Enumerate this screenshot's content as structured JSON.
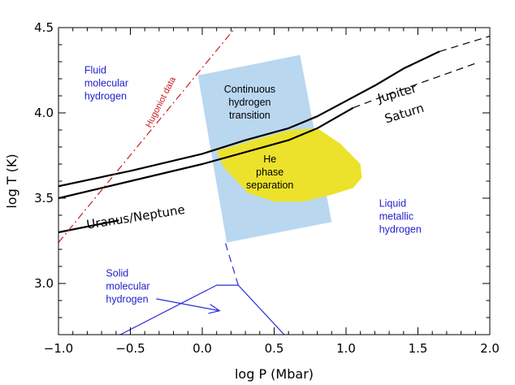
{
  "chart_data": {
    "type": "line",
    "title": "",
    "xlabel": "log P (Mbar)",
    "ylabel": "log T (K)",
    "xlim": [
      -1.0,
      2.0
    ],
    "ylim": [
      2.7,
      4.5
    ],
    "xticks": [
      "−1.0",
      "−0.5",
      "0.0",
      "0.5",
      "1.0",
      "1.5",
      "2.0"
    ],
    "xtick_values": [
      -1.0,
      -0.5,
      0.0,
      0.5,
      1.0,
      1.5,
      2.0
    ],
    "yticks": [
      "3.0",
      "3.5",
      "4.0",
      "4.5"
    ],
    "ytick_values": [
      3.0,
      3.5,
      4.0,
      4.5
    ],
    "series": [
      {
        "name": "Jupiter",
        "style": "solid",
        "color": "#000000",
        "x": [
          -1.0,
          -0.5,
          0.0,
          0.3,
          0.6,
          0.8,
          1.0,
          1.2,
          1.4,
          1.65
        ],
        "y": [
          3.57,
          3.66,
          3.76,
          3.84,
          3.91,
          3.98,
          4.07,
          4.16,
          4.26,
          4.36
        ]
      },
      {
        "name": "Jupiter (extrapolated)",
        "style": "dashed",
        "color": "#000000",
        "x": [
          1.65,
          2.0
        ],
        "y": [
          4.36,
          4.45
        ]
      },
      {
        "name": "Saturn",
        "style": "solid",
        "color": "#000000",
        "x": [
          -1.0,
          -0.5,
          0.0,
          0.3,
          0.6,
          0.8,
          1.05
        ],
        "y": [
          3.5,
          3.6,
          3.7,
          3.77,
          3.84,
          3.91,
          4.03
        ]
      },
      {
        "name": "Saturn (extrapolated)",
        "style": "dashed",
        "color": "#000000",
        "x": [
          1.05,
          1.3,
          1.6,
          1.9
        ],
        "y": [
          4.03,
          4.11,
          4.2,
          4.29
        ]
      },
      {
        "name": "Uranus/Neptune",
        "style": "solid",
        "color": "#000000",
        "x": [
          -1.0,
          -0.58
        ],
        "y": [
          3.3,
          3.37
        ]
      },
      {
        "name": "Hugoniot data",
        "style": "dashdot",
        "color": "#c81e1e",
        "x": [
          -1.0,
          0.23
        ],
        "y": [
          3.24,
          4.5
        ]
      },
      {
        "name": "Solid phase boundary",
        "style": "solid",
        "color": "#2a2ad8",
        "x": [
          -0.57,
          0.1,
          0.25,
          0.57
        ],
        "y": [
          2.7,
          2.99,
          2.99,
          2.7
        ]
      },
      {
        "name": "Melting line (dashed)",
        "style": "dashed",
        "color": "#2a2ad8",
        "x": [
          0.25,
          0.16
        ],
        "y": [
          2.99,
          3.24
        ]
      }
    ],
    "regions": [
      {
        "name": "Continuous hydrogen transition",
        "color": "#bad7f0",
        "polygon": [
          [
            -0.03,
            4.22
          ],
          [
            0.68,
            4.34
          ],
          [
            0.9,
            3.36
          ],
          [
            0.17,
            3.24
          ]
        ]
      },
      {
        "name": "He phase separation",
        "color": "#ece22b",
        "polygon": [
          [
            0.1,
            3.78
          ],
          [
            0.2,
            3.8
          ],
          [
            0.35,
            3.84
          ],
          [
            0.62,
            3.9
          ],
          [
            0.8,
            3.91
          ],
          [
            0.96,
            3.82
          ],
          [
            1.1,
            3.7
          ],
          [
            1.11,
            3.62
          ],
          [
            1.05,
            3.56
          ],
          [
            0.9,
            3.52
          ],
          [
            0.7,
            3.48
          ],
          [
            0.5,
            3.48
          ],
          [
            0.32,
            3.53
          ],
          [
            0.24,
            3.6
          ],
          [
            0.15,
            3.68
          ]
        ]
      }
    ],
    "annotations": [
      {
        "id": "fluid",
        "lines": [
          "Fluid",
          "molecular",
          "hydrogen"
        ],
        "x": -0.82,
        "y": 4.23,
        "color": "#2222cc"
      },
      {
        "id": "continuous",
        "lines": [
          "Continuous",
          "hydrogen",
          "transition"
        ],
        "x": 0.33,
        "y": 4.12,
        "color": "#000000"
      },
      {
        "id": "he",
        "lines": [
          "He",
          "phase",
          "separation"
        ],
        "x": 0.47,
        "y": 3.71,
        "color": "#000000"
      },
      {
        "id": "liquid",
        "lines": [
          "Liquid",
          "metallic",
          "hydrogen"
        ],
        "x": 1.23,
        "y": 3.45,
        "color": "#2222cc"
      },
      {
        "id": "solid",
        "lines": [
          "Solid",
          "molecular",
          "hydrogen"
        ],
        "x": -0.67,
        "y": 3.04,
        "color": "#2222cc"
      },
      {
        "id": "hugoniot",
        "lines": [
          "Hugoniot data"
        ],
        "x": -0.36,
        "y": 3.91,
        "color": "#c81e1e",
        "angle": -63
      },
      {
        "id": "jupiter",
        "lines": [
          "Jupiter"
        ],
        "x": 1.23,
        "y": 4.06,
        "color": "#000000",
        "angle": -16
      },
      {
        "id": "saturn",
        "lines": [
          "Saturn"
        ],
        "x": 1.28,
        "y": 3.94,
        "color": "#000000",
        "angle": -17
      },
      {
        "id": "uranus",
        "lines": [
          "Uranus/Neptune"
        ],
        "x": -0.8,
        "y": 3.32,
        "color": "#000000",
        "angle": -9
      }
    ],
    "arrow": {
      "from": [
        -0.32,
        2.91
      ],
      "to": [
        0.12,
        2.84
      ],
      "color": "#2a2ad8"
    },
    "grid": false
  }
}
